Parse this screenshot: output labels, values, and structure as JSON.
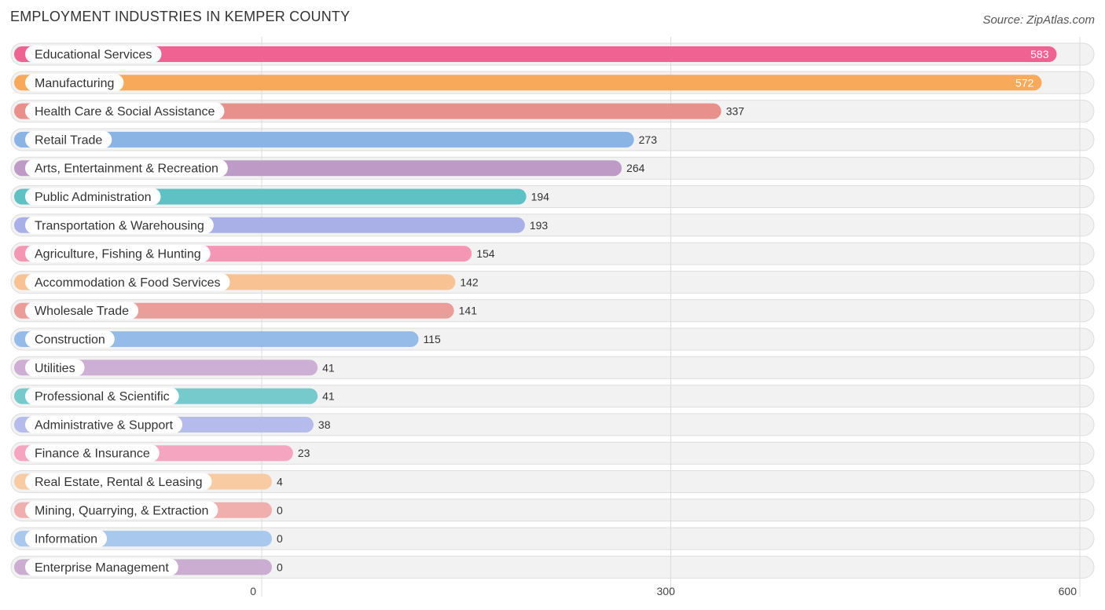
{
  "chart_data": {
    "type": "bar",
    "orientation": "horizontal",
    "title": "EMPLOYMENT INDUSTRIES IN KEMPER COUNTY",
    "source": "Source: ZipAtlas.com",
    "xlim": [
      0,
      600
    ],
    "ticks": [
      0,
      300,
      600
    ],
    "tick_labels": [
      "0",
      "300",
      "600"
    ],
    "categories": [
      "Educational Services",
      "Manufacturing",
      "Health Care & Social Assistance",
      "Retail Trade",
      "Arts, Entertainment & Recreation",
      "Public Administration",
      "Transportation & Warehousing",
      "Agriculture, Fishing & Hunting",
      "Accommodation & Food Services",
      "Wholesale Trade",
      "Construction",
      "Utilities",
      "Professional & Scientific",
      "Administrative & Support",
      "Finance & Insurance",
      "Real Estate, Rental & Leasing",
      "Mining, Quarrying, & Extraction",
      "Information",
      "Enterprise Management"
    ],
    "values": [
      583,
      572,
      337,
      273,
      264,
      194,
      193,
      154,
      142,
      141,
      115,
      41,
      41,
      38,
      23,
      4,
      0,
      0,
      0
    ],
    "colors": [
      "#f06292",
      "#f8a95a",
      "#e8908c",
      "#8ab4e3",
      "#bd9bc6",
      "#5ec2c4",
      "#a9b0e8",
      "#f596b5",
      "#f8c292",
      "#eb9d9a",
      "#95bce8",
      "#cdaed4",
      "#76cacb",
      "#b5bcec",
      "#f6a5c0",
      "#f9cba2",
      "#f0aeac",
      "#a8c8ee",
      "#cbadd2"
    ]
  }
}
